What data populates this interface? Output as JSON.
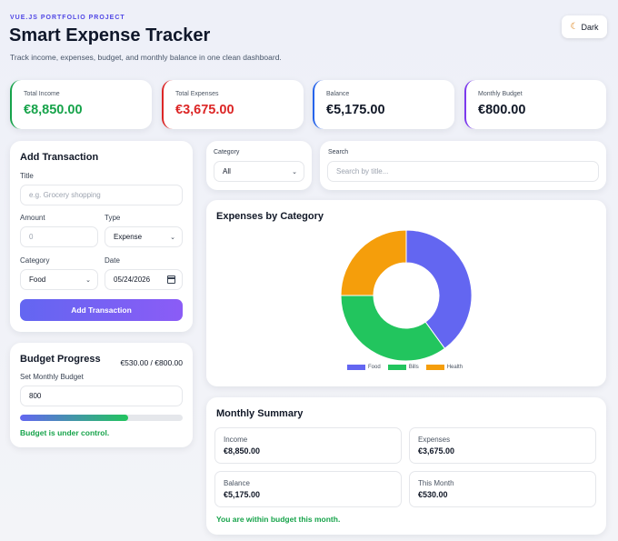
{
  "header": {
    "eyebrow": "VUE.JS PORTFOLIO PROJECT",
    "title": "Smart Expense Tracker",
    "subtitle": "Track income, expenses, budget, and monthly balance in one clean dashboard.",
    "theme_toggle": {
      "icon": "moon-icon",
      "label": "Dark"
    }
  },
  "stats": [
    {
      "label": "Total Income",
      "value": "€8,850.00",
      "color": "#16a34a",
      "accent": "#16a34a"
    },
    {
      "label": "Total Expenses",
      "value": "€3,675.00",
      "color": "#dc2626",
      "accent": "#dc2626"
    },
    {
      "label": "Balance",
      "value": "€5,175.00",
      "color": "#111827",
      "accent": "#2563eb"
    },
    {
      "label": "Monthly Budget",
      "value": "€800.00",
      "color": "#111827",
      "accent": "#7c3aed"
    }
  ],
  "add_transaction": {
    "heading": "Add Transaction",
    "title_label": "Title",
    "title_placeholder": "e.g. Grocery shopping",
    "amount_label": "Amount",
    "amount_placeholder": "0",
    "type_label": "Type",
    "type_value": "Expense",
    "category_label": "Category",
    "category_value": "Food",
    "date_label": "Date",
    "date_value": "05/24/2026",
    "submit_label": "Add Transaction"
  },
  "budget": {
    "heading": "Budget Progress",
    "ratio": "€530.00 / €800.00",
    "set_label": "Set Monthly Budget",
    "input_value": "800",
    "progress_fraction": 0.6625,
    "status": "Budget is under control."
  },
  "filters": {
    "category_label": "Category",
    "category_value": "All",
    "search_label": "Search",
    "search_placeholder": "Search by title..."
  },
  "chart_card": {
    "heading": "Expenses by Category"
  },
  "chart_data": {
    "type": "pie",
    "title": "Expenses by Category",
    "categories": [
      "Food",
      "Bills",
      "Health"
    ],
    "values": [
      40,
      35,
      25
    ],
    "colors": [
      "#6366f1",
      "#22c55e",
      "#f59e0b"
    ],
    "legend_position": "bottom"
  },
  "summary": {
    "heading": "Monthly Summary",
    "items": [
      {
        "label": "Income",
        "value": "€8,850.00"
      },
      {
        "label": "Expenses",
        "value": "€3,675.00"
      },
      {
        "label": "Balance",
        "value": "€5,175.00"
      },
      {
        "label": "This Month",
        "value": "€530.00"
      }
    ],
    "status": "You are within budget this month.",
    "status_color": "#16a34a"
  }
}
